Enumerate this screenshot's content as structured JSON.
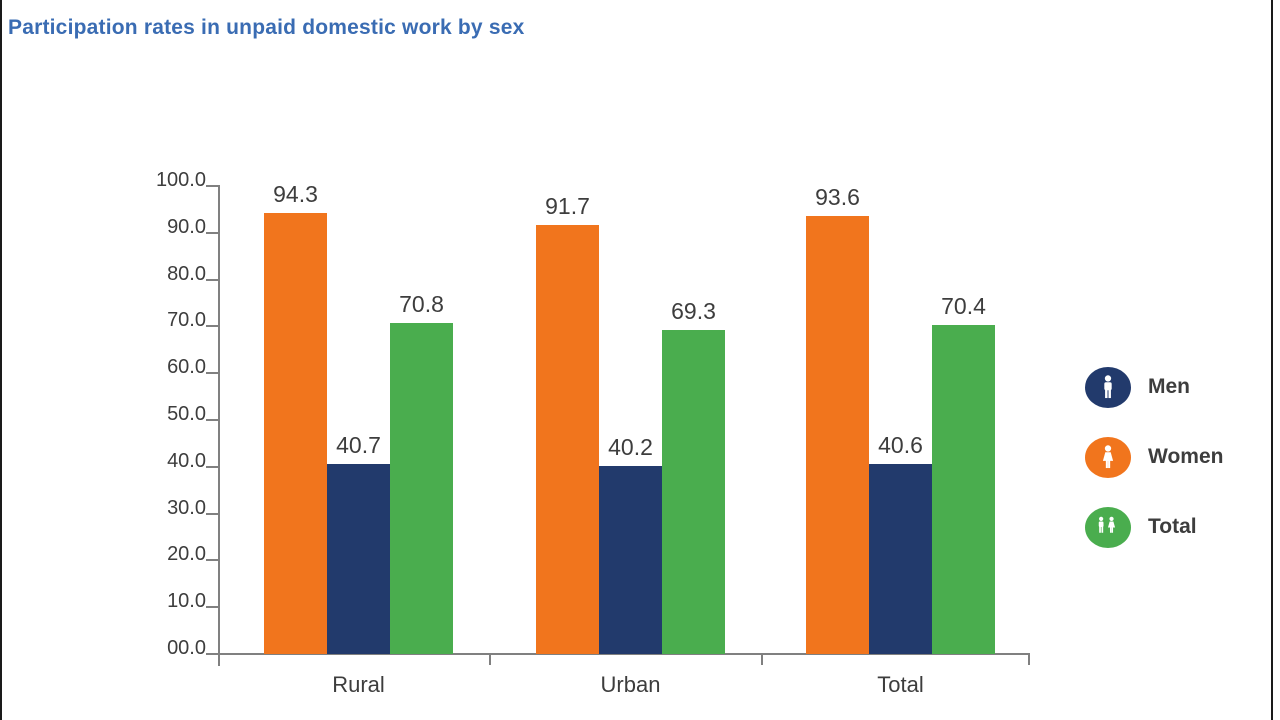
{
  "page": {
    "title": "Participation rates in unpaid domestic work by sex",
    "title_color": "#3a6cb3",
    "background": "#ffffff"
  },
  "colors": {
    "axis": "#808080",
    "text": "#3d3d3d",
    "edge_line": "#1a1a1a"
  },
  "chart_data": {
    "type": "bar",
    "title": "Participation rates in unpaid domestic work by sex",
    "categories": [
      "Rural",
      "Urban",
      "Total"
    ],
    "series": [
      {
        "name": "Women",
        "color": "#f1751d",
        "icon": "woman-icon",
        "values": [
          94.3,
          91.7,
          93.6
        ]
      },
      {
        "name": "Men",
        "color": "#223a6c",
        "icon": "man-icon",
        "values": [
          40.7,
          40.2,
          40.6
        ]
      },
      {
        "name": "Total",
        "color": "#4aad4e",
        "icon": "people-icon",
        "values": [
          70.8,
          69.3,
          70.4
        ]
      }
    ],
    "value_labels": [
      "94.3",
      "40.7",
      "70.8",
      "91.7",
      "40.2",
      "69.3",
      "93.6",
      "40.6",
      "70.4"
    ],
    "y_axis": {
      "min": 0,
      "max": 100,
      "tick_labels": [
        "100.0",
        "90.0",
        "80.0",
        "70.0",
        "60.0",
        "50.0",
        "40.0",
        "30.0",
        "20.0",
        "10.0",
        "00.0"
      ]
    },
    "xlabel": "",
    "ylabel": "",
    "grid": false,
    "legend": {
      "position": "right",
      "items": [
        "Men",
        "Women",
        "Total"
      ]
    }
  }
}
